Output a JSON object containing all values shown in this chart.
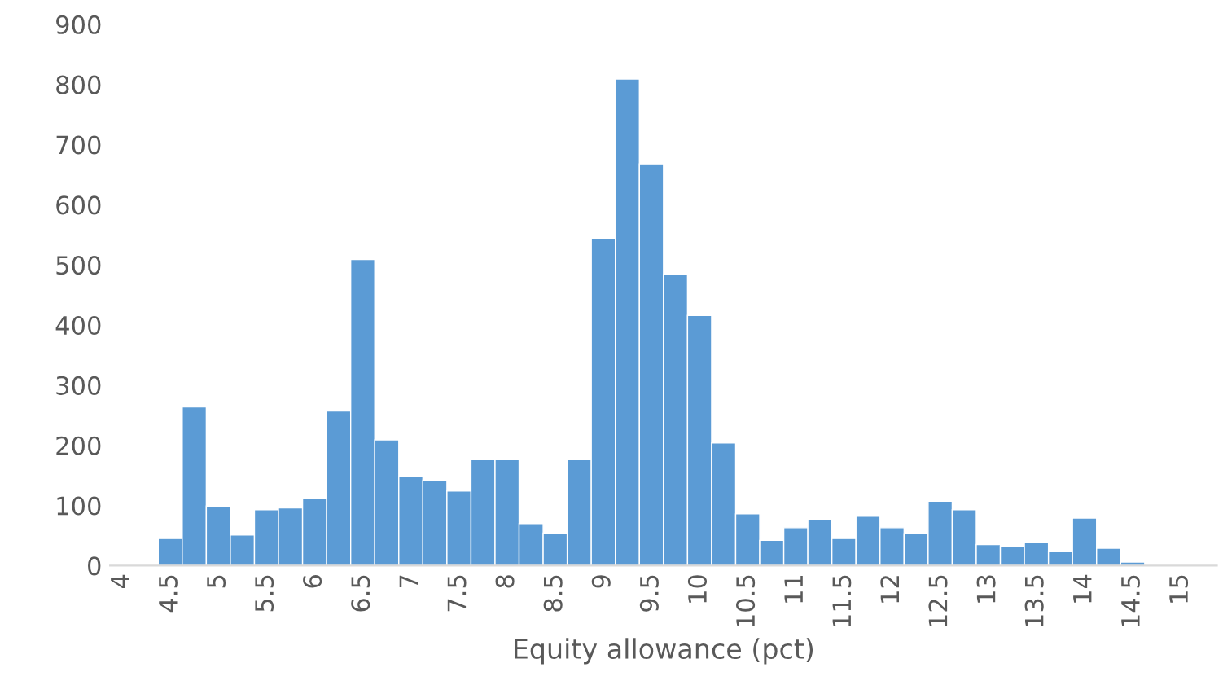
{
  "chart_data": {
    "type": "histogram",
    "xlabel": "Equity allowance (pct)",
    "color": "#5b9bd5",
    "bins": [
      4.375,
      4.625,
      4.875,
      5.125,
      5.375,
      5.625,
      5.875,
      6.125,
      6.375,
      6.625,
      6.875,
      7.125,
      7.375,
      7.625,
      7.875,
      8.125,
      8.375,
      8.625,
      8.875,
      9.125,
      9.375,
      9.625,
      9.875,
      10.125,
      10.375,
      10.625,
      10.875,
      11.125,
      11.375,
      11.625,
      11.875,
      12.125,
      12.375,
      12.625,
      12.875,
      13.125,
      13.375,
      13.625,
      13.875,
      14.125,
      14.375,
      14.625
    ],
    "values": [
      45,
      264,
      99,
      51,
      93,
      96,
      111,
      257,
      509,
      209,
      148,
      142,
      124,
      176,
      176,
      70,
      54,
      176,
      543,
      809,
      668,
      484,
      416,
      204,
      86,
      42,
      63,
      77,
      45,
      82,
      63,
      53,
      107,
      93,
      35,
      32,
      38,
      23,
      79,
      29,
      6
    ],
    "xlim": [
      3.875,
      15.375
    ],
    "xticks": [
      4,
      4.5,
      5,
      5.5,
      6,
      6.5,
      7,
      7.5,
      8,
      8.5,
      9,
      9.5,
      10,
      10.5,
      11,
      11.5,
      12,
      12.5,
      13,
      13.5,
      14,
      14.5,
      15
    ],
    "ylim": [
      0,
      900
    ],
    "yticks": [
      0,
      100,
      200,
      300,
      400,
      500,
      600,
      700,
      800,
      900
    ],
    "grid": false
  }
}
